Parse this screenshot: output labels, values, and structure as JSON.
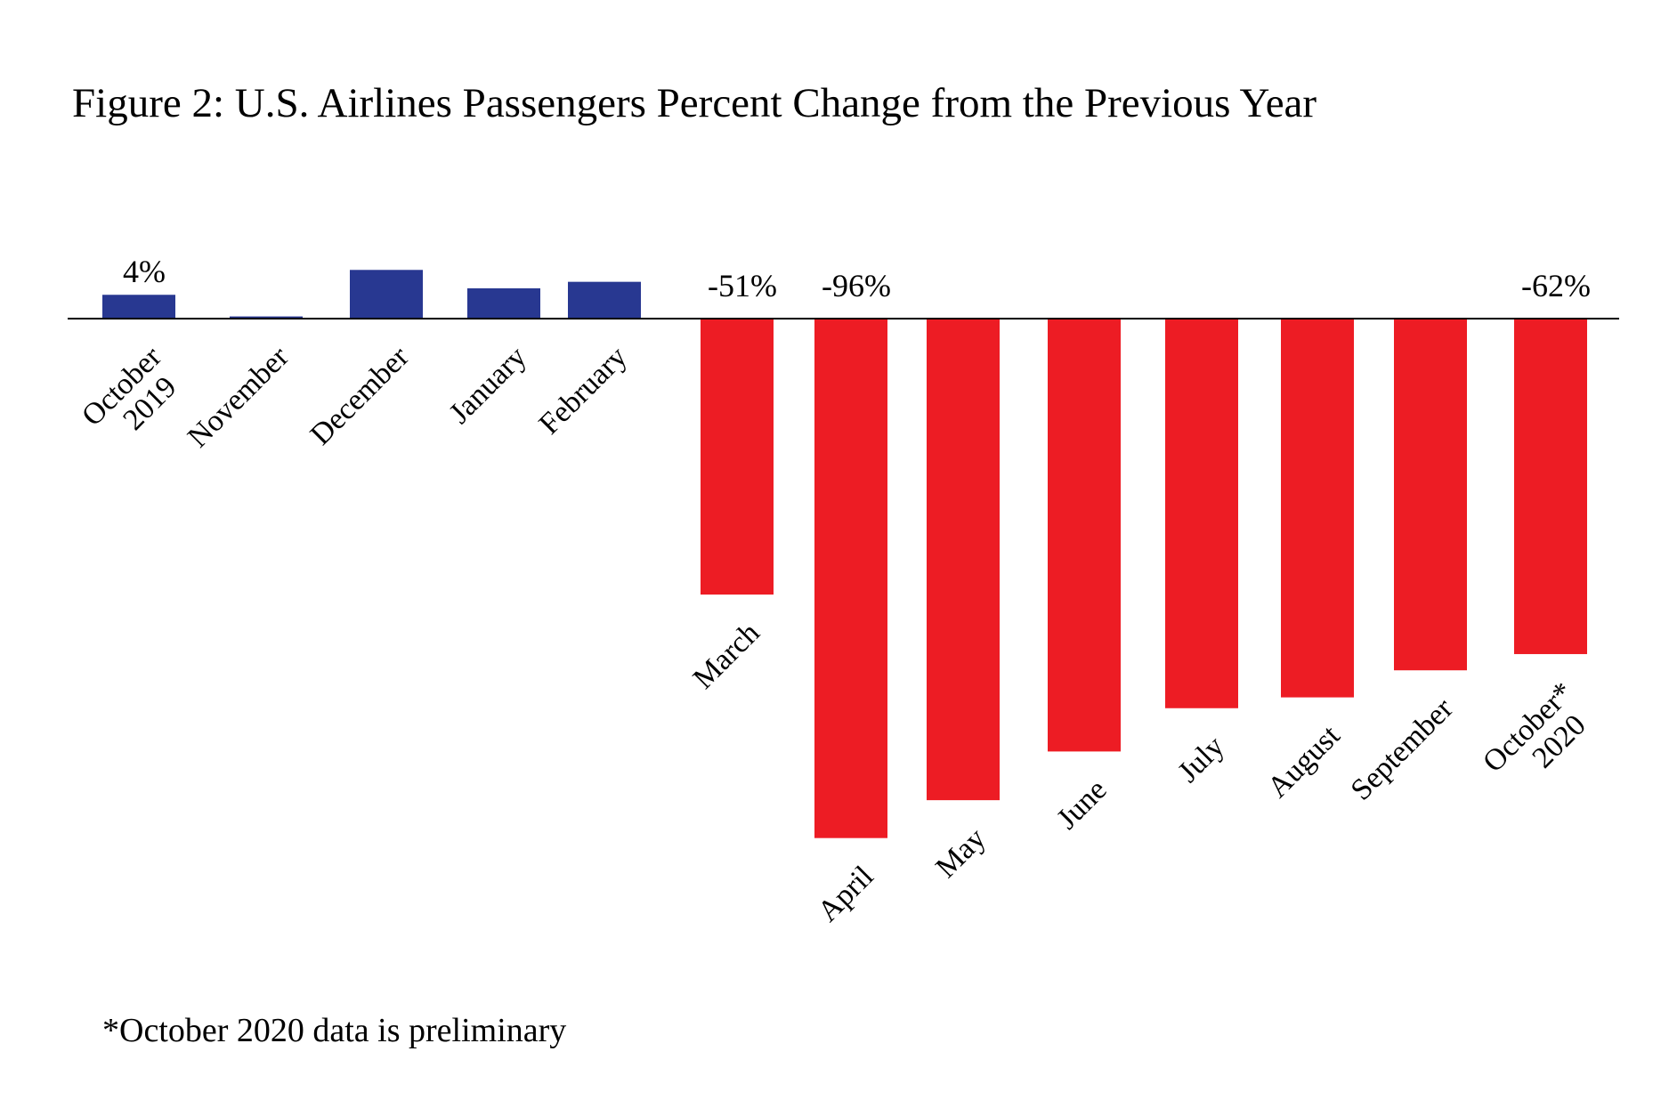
{
  "chart_data": {
    "type": "bar",
    "title": "Figure 2: U.S. Airlines Passengers Percent Change from the Previous Year",
    "xlabel": "",
    "ylabel": "",
    "ylim": [
      -100,
      10
    ],
    "grid": false,
    "categories": [
      [
        "October",
        "2019"
      ],
      [
        "November"
      ],
      [
        "December"
      ],
      [
        "January"
      ],
      [
        "February"
      ],
      [
        "March"
      ],
      [
        "April"
      ],
      [
        "May"
      ],
      [
        "June"
      ],
      [
        "July"
      ],
      [
        "August"
      ],
      [
        "September"
      ],
      [
        "October*",
        "2020"
      ]
    ],
    "values": [
      4.4,
      0.4,
      9,
      5.6,
      6.8,
      -51,
      -96,
      -89,
      -80,
      -72,
      -70,
      -65,
      -62
    ],
    "data_labels": {
      "0": "4%",
      "5": "-51%",
      "6": "-96%",
      "12": "-62%"
    },
    "colors": {
      "positive": "#283891",
      "negative": "#ED1C24"
    },
    "footnote": "*October 2020 data is preliminary"
  }
}
